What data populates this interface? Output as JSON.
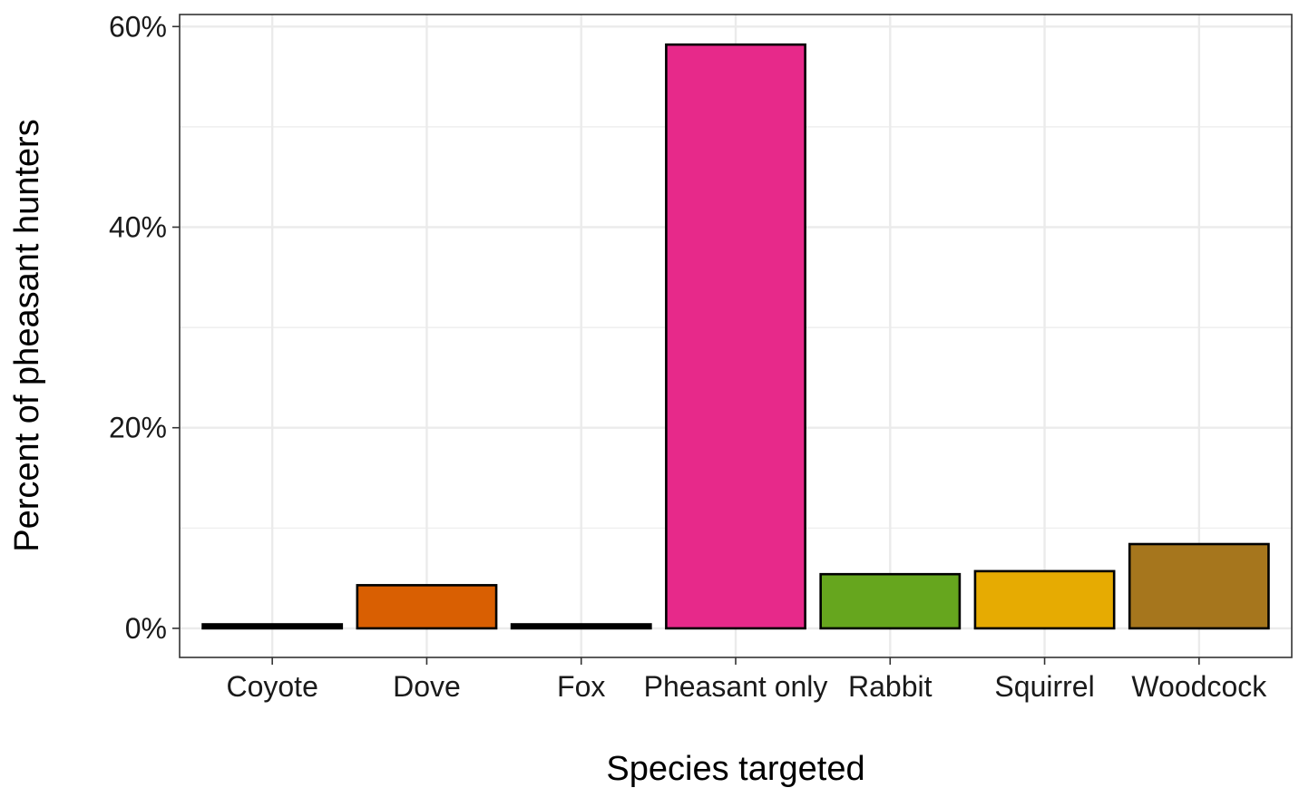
{
  "chart_data": {
    "type": "bar",
    "title": "",
    "xlabel": "Species targeted",
    "ylabel": "Percent of pheasant hunters",
    "categories": [
      "Coyote",
      "Dove",
      "Fox",
      "Pheasant only",
      "Rabbit",
      "Squirrel",
      "Woodcock"
    ],
    "values": [
      0.4,
      4.3,
      0.4,
      58.2,
      5.4,
      5.7,
      8.4
    ],
    "colors": [
      "#000000",
      "#D95F02",
      "#000000",
      "#E7298A",
      "#66A61E",
      "#E6AB02",
      "#A6761D"
    ],
    "ylim": [
      -2.9,
      61.2
    ],
    "yticks": [
      0,
      20,
      40,
      60
    ],
    "ytick_labels": [
      "0%",
      "20%",
      "40%",
      "60%"
    ],
    "grid": true,
    "legend": "none"
  }
}
